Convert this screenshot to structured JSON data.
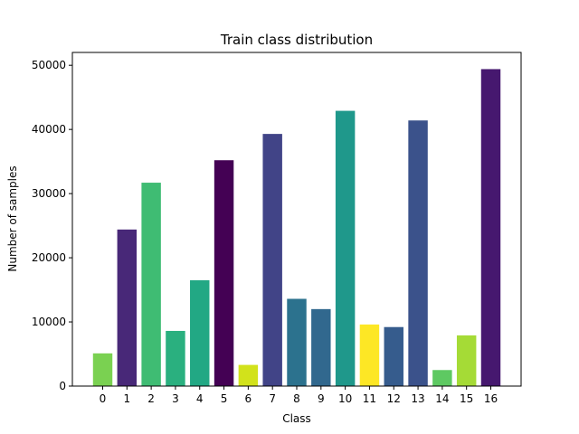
{
  "chart_data": {
    "type": "bar",
    "title": "Train class distribution",
    "xlabel": "Class",
    "ylabel": "Number of samples",
    "categories": [
      "0",
      "1",
      "2",
      "3",
      "4",
      "5",
      "6",
      "7",
      "8",
      "9",
      "10",
      "11",
      "12",
      "13",
      "14",
      "15",
      "16"
    ],
    "values": [
      5100,
      24400,
      31700,
      8600,
      16500,
      35200,
      3300,
      39300,
      13600,
      12000,
      42900,
      9600,
      9200,
      41400,
      2500,
      7900,
      49400
    ],
    "colors": [
      "#7ad151",
      "#482878",
      "#3fbc73",
      "#2ab07f",
      "#22a884",
      "#440154",
      "#d2e21b",
      "#414487",
      "#2c728e",
      "#31688e",
      "#1f988b",
      "#fde725",
      "#365c8d",
      "#3b528b",
      "#5ec962",
      "#a5db36",
      "#46186f"
    ],
    "ylim": [
      0,
      52000
    ],
    "yticks": [
      0,
      10000,
      20000,
      30000,
      40000,
      50000
    ],
    "grid": false,
    "legend": "none"
  }
}
